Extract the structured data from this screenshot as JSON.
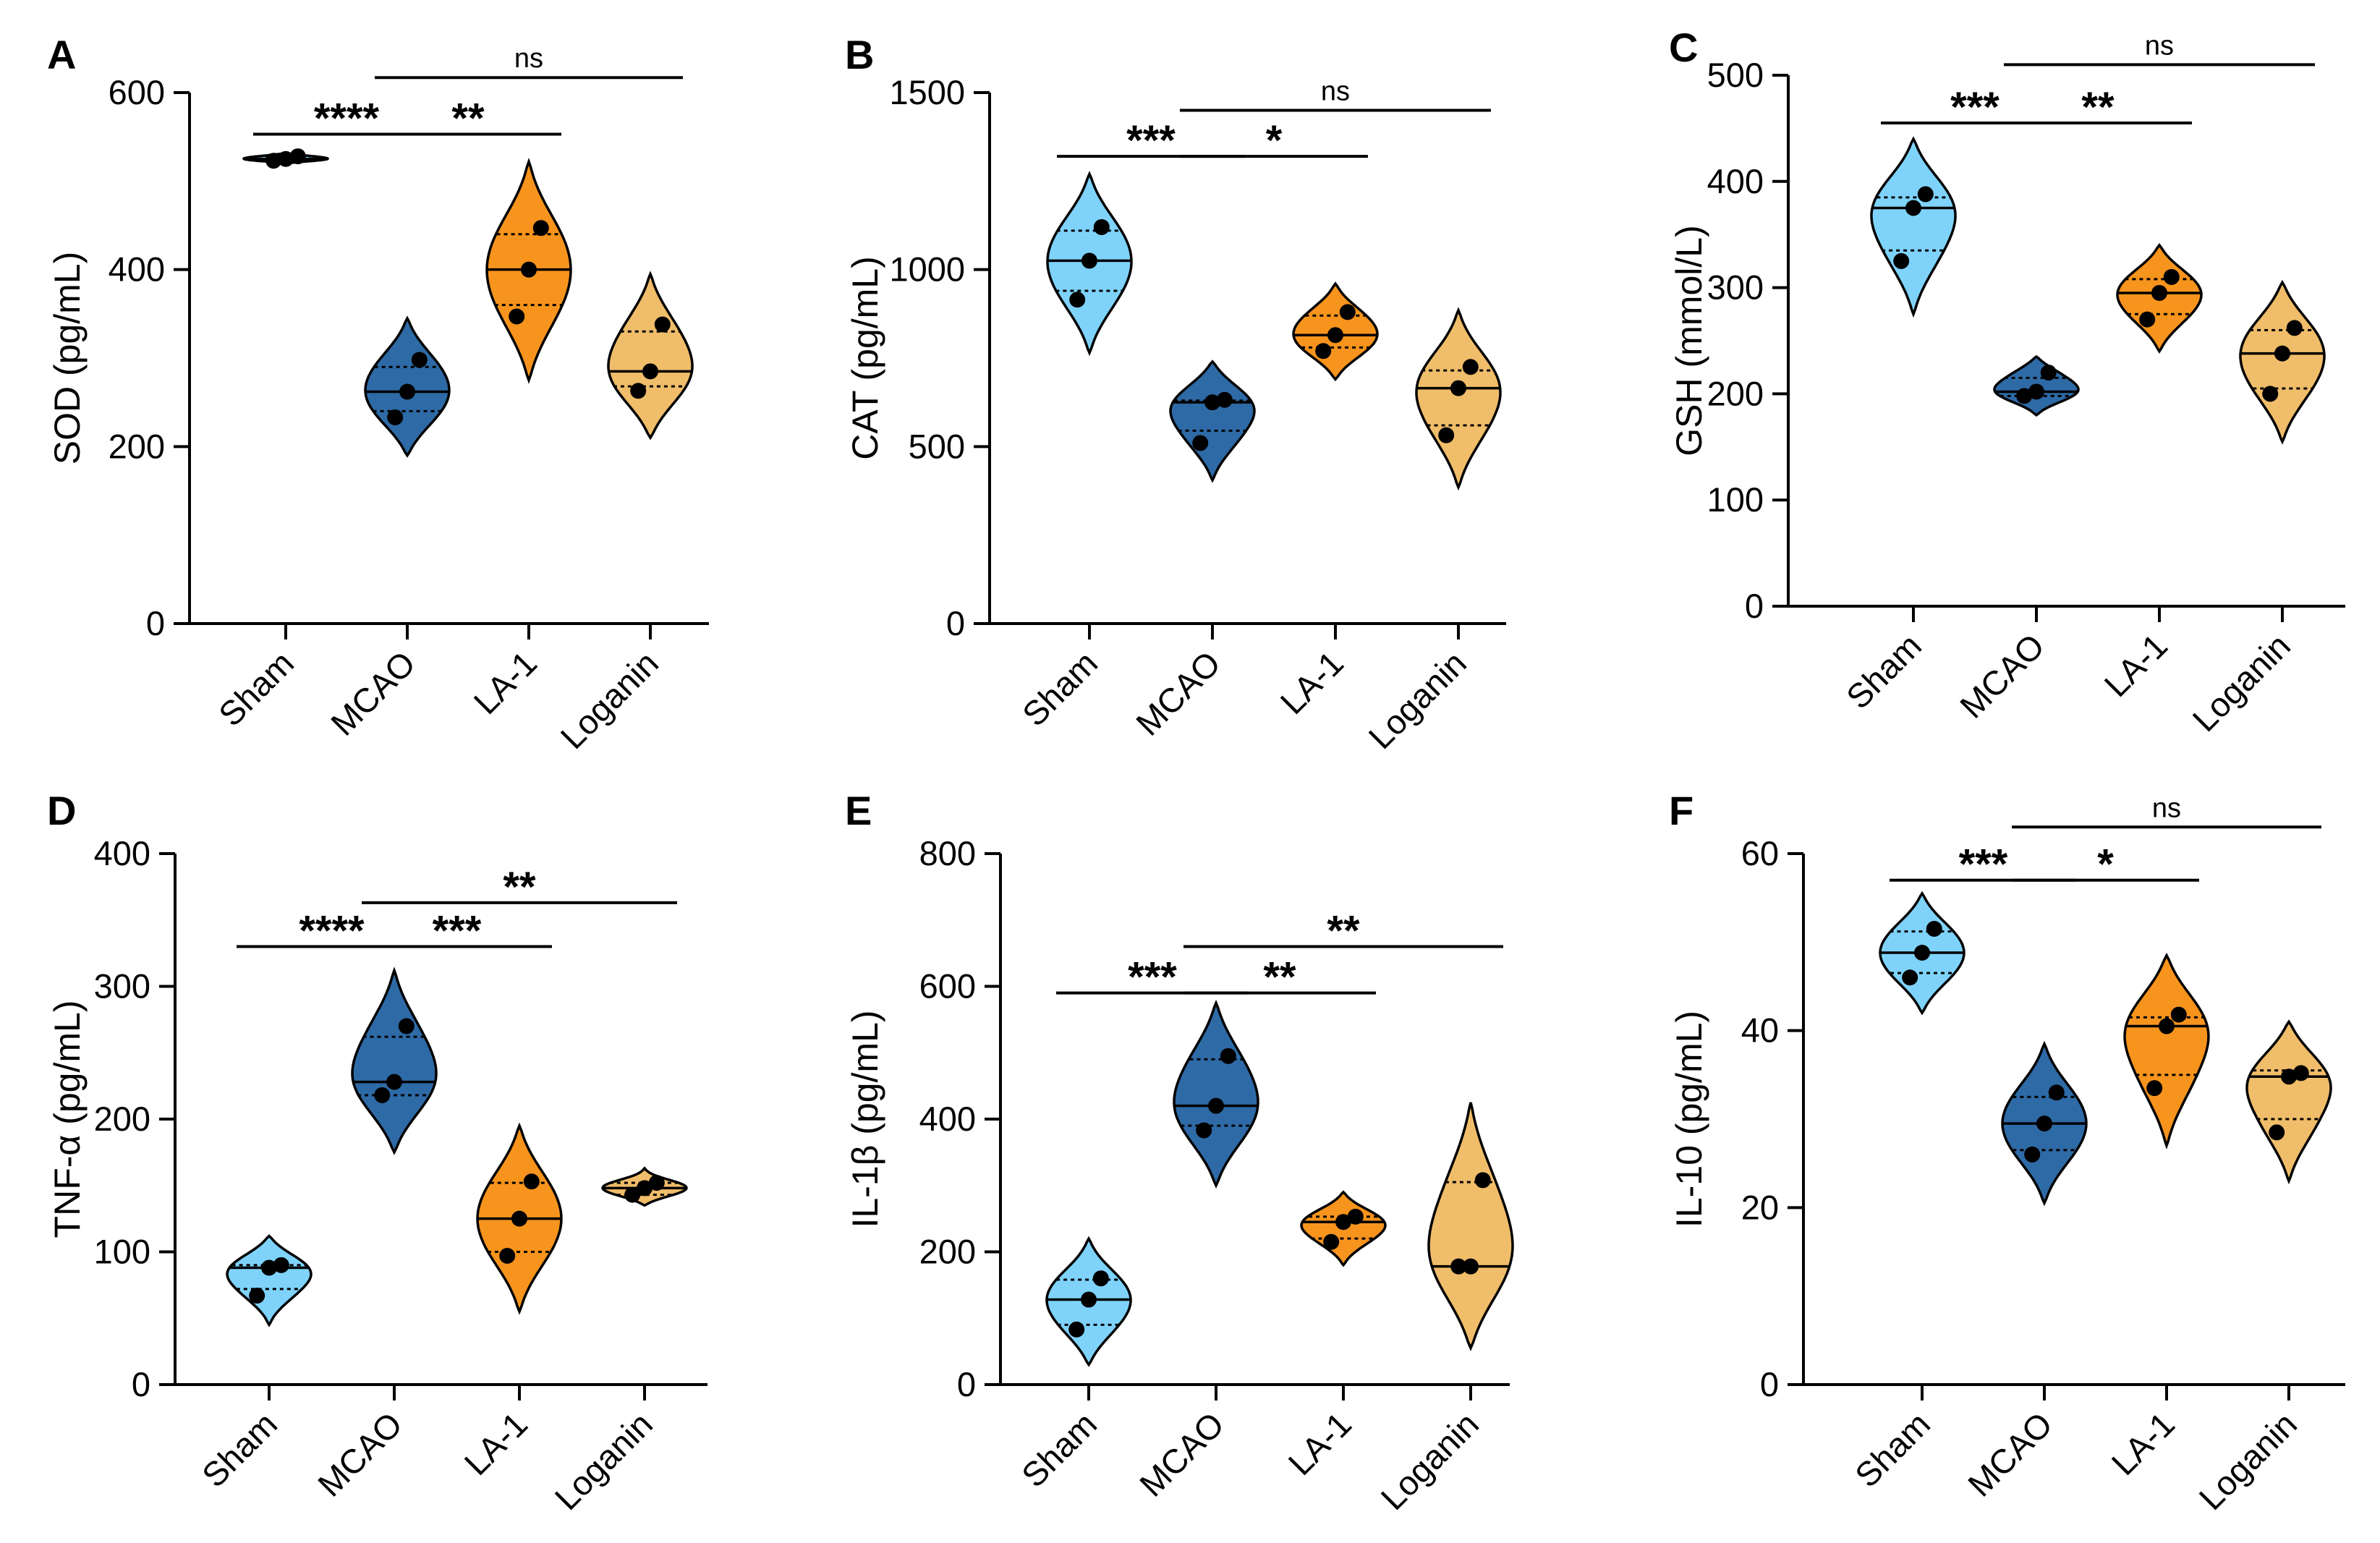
{
  "colors": {
    "Sham": "#7fd3fb",
    "MCAO": "#2e6aa6",
    "LA-1": "#f7941d",
    "Loganin": "#f0bd6a",
    "stroke": "#000000"
  },
  "chart_data": [
    {
      "panel": "A",
      "type": "violin",
      "ylabel": "SOD (pg/mL)",
      "ylim": [
        0,
        600
      ],
      "yticks": [
        0,
        200,
        400,
        600
      ],
      "categories": [
        "Sham",
        "MCAO",
        "LA-1",
        "Loganin"
      ],
      "series": [
        {
          "name": "Sham",
          "points": [
            523,
            525,
            528
          ],
          "median": 525,
          "q1": 523,
          "q3": 528,
          "range": [
            520,
            532
          ]
        },
        {
          "name": "MCAO",
          "points": [
            233,
            262,
            298
          ],
          "median": 262,
          "q1": 240,
          "q3": 290,
          "range": [
            190,
            345
          ]
        },
        {
          "name": "LA-1",
          "points": [
            347,
            400,
            447
          ],
          "median": 400,
          "q1": 360,
          "q3": 440,
          "range": [
            275,
            522
          ]
        },
        {
          "name": "Loganin",
          "points": [
            263,
            285,
            338
          ],
          "median": 285,
          "q1": 268,
          "q3": 330,
          "range": [
            210,
            395
          ]
        }
      ],
      "comparisons": [
        {
          "from": "Sham",
          "to": "MCAO",
          "label": "****",
          "y": 553
        },
        {
          "from": "MCAO",
          "to": "LA-1",
          "label": "**",
          "y": 553
        },
        {
          "from": "MCAO",
          "to": "Loganin",
          "label": "ns",
          "y": 617
        }
      ]
    },
    {
      "panel": "B",
      "type": "violin",
      "ylabel": "CAT (pg/mL)",
      "ylim": [
        0,
        1500
      ],
      "yticks": [
        0,
        500,
        1000,
        1500
      ],
      "categories": [
        "Sham",
        "MCAO",
        "LA-1",
        "Loganin"
      ],
      "series": [
        {
          "name": "Sham",
          "points": [
            915,
            1025,
            1120
          ],
          "median": 1025,
          "q1": 940,
          "q3": 1110,
          "range": [
            765,
            1270
          ]
        },
        {
          "name": "MCAO",
          "points": [
            510,
            625,
            632
          ],
          "median": 625,
          "q1": 545,
          "q3": 630,
          "range": [
            405,
            740
          ]
        },
        {
          "name": "LA-1",
          "points": [
            770,
            815,
            880
          ],
          "median": 815,
          "q1": 780,
          "q3": 870,
          "range": [
            690,
            960
          ]
        },
        {
          "name": "Loganin",
          "points": [
            532,
            665,
            725
          ],
          "median": 665,
          "q1": 560,
          "q3": 715,
          "range": [
            385,
            885
          ]
        }
      ],
      "comparisons": [
        {
          "from": "Sham",
          "to": "MCAO",
          "label": "***",
          "y": 1320
        },
        {
          "from": "MCAO",
          "to": "LA-1",
          "label": "*",
          "y": 1320
        },
        {
          "from": "MCAO",
          "to": "Loganin",
          "label": "ns",
          "y": 1450
        }
      ]
    },
    {
      "panel": "C",
      "type": "violin",
      "ylabel": "GSH (mmol/L)",
      "ylim": [
        0,
        500
      ],
      "yticks": [
        0,
        100,
        200,
        300,
        400,
        500
      ],
      "categories": [
        "Sham",
        "MCAO",
        "LA-1",
        "Loganin"
      ],
      "series": [
        {
          "name": "Sham",
          "points": [
            325,
            375,
            388
          ],
          "median": 375,
          "q1": 335,
          "q3": 385,
          "range": [
            275,
            440
          ]
        },
        {
          "name": "MCAO",
          "points": [
            198,
            202,
            220
          ],
          "median": 202,
          "q1": 198,
          "q3": 215,
          "range": [
            180,
            235
          ]
        },
        {
          "name": "LA-1",
          "points": [
            270,
            295,
            310
          ],
          "median": 295,
          "q1": 275,
          "q3": 308,
          "range": [
            240,
            340
          ]
        },
        {
          "name": "Loganin",
          "points": [
            200,
            238,
            262
          ],
          "median": 238,
          "q1": 205,
          "q3": 260,
          "range": [
            155,
            305
          ]
        }
      ],
      "comparisons": [
        {
          "from": "Sham",
          "to": "MCAO",
          "label": "***",
          "y": 455
        },
        {
          "from": "MCAO",
          "to": "LA-1",
          "label": "**",
          "y": 455
        },
        {
          "from": "MCAO",
          "to": "Loganin",
          "label": "ns",
          "y": 510
        }
      ]
    },
    {
      "panel": "D",
      "type": "violin",
      "ylabel": "TNF-α (pg/mL)",
      "ylim": [
        0,
        400
      ],
      "yticks": [
        0,
        100,
        200,
        300,
        400
      ],
      "categories": [
        "Sham",
        "MCAO",
        "LA-1",
        "Loganin"
      ],
      "series": [
        {
          "name": "Sham",
          "points": [
            67,
            88,
            90
          ],
          "median": 88,
          "q1": 72,
          "q3": 90,
          "range": [
            45,
            112
          ]
        },
        {
          "name": "MCAO",
          "points": [
            218,
            228,
            270
          ],
          "median": 228,
          "q1": 218,
          "q3": 262,
          "range": [
            175,
            312
          ]
        },
        {
          "name": "LA-1",
          "points": [
            97,
            125,
            153
          ],
          "median": 125,
          "q1": 100,
          "q3": 152,
          "range": [
            55,
            195
          ]
        },
        {
          "name": "Loganin",
          "points": [
            143,
            148,
            152
          ],
          "median": 148,
          "q1": 143,
          "q3": 152,
          "range": [
            135,
            163
          ]
        }
      ],
      "comparisons": [
        {
          "from": "Sham",
          "to": "MCAO",
          "label": "****",
          "y": 330
        },
        {
          "from": "MCAO",
          "to": "LA-1",
          "label": "***",
          "y": 330
        },
        {
          "from": "MCAO",
          "to": "Loganin",
          "label": "**",
          "y": 363
        }
      ]
    },
    {
      "panel": "E",
      "type": "violin",
      "ylabel": "IL-1β (pg/mL)",
      "ylim": [
        0,
        800
      ],
      "yticks": [
        0,
        200,
        400,
        600,
        800
      ],
      "categories": [
        "Sham",
        "MCAO",
        "LA-1",
        "Loganin"
      ],
      "series": [
        {
          "name": "Sham",
          "points": [
            83,
            128,
            160
          ],
          "median": 128,
          "q1": 90,
          "q3": 158,
          "range": [
            30,
            220
          ]
        },
        {
          "name": "MCAO",
          "points": [
            383,
            420,
            495
          ],
          "median": 420,
          "q1": 390,
          "q3": 490,
          "range": [
            300,
            575
          ]
        },
        {
          "name": "LA-1",
          "points": [
            215,
            245,
            253
          ],
          "median": 245,
          "q1": 220,
          "q3": 253,
          "range": [
            180,
            290
          ]
        },
        {
          "name": "Loganin",
          "points": [
            178,
            178,
            308
          ],
          "median": 178,
          "q1": 178,
          "q3": 305,
          "range": [
            55,
            425
          ]
        }
      ],
      "comparisons": [
        {
          "from": "Sham",
          "to": "MCAO",
          "label": "***",
          "y": 590
        },
        {
          "from": "MCAO",
          "to": "LA-1",
          "label": "**",
          "y": 590
        },
        {
          "from": "MCAO",
          "to": "Loganin",
          "label": "**",
          "y": 660
        }
      ]
    },
    {
      "panel": "F",
      "type": "violin",
      "ylabel": "IL-10  (pg/mL)",
      "ylim": [
        0,
        60
      ],
      "yticks": [
        0,
        20,
        40,
        60
      ],
      "categories": [
        "Sham",
        "MCAO",
        "LA-1",
        "Loganin"
      ],
      "series": [
        {
          "name": "Sham",
          "points": [
            46,
            48.8,
            51.5
          ],
          "median": 48.8,
          "q1": 46.5,
          "q3": 51.2,
          "range": [
            42,
            55.5
          ]
        },
        {
          "name": "MCAO",
          "points": [
            26,
            29.5,
            33
          ],
          "median": 29.5,
          "q1": 26.5,
          "q3": 32.5,
          "range": [
            20.5,
            38.5
          ]
        },
        {
          "name": "LA-1",
          "points": [
            33.5,
            40.5,
            41.8
          ],
          "median": 40.5,
          "q1": 35,
          "q3": 41.5,
          "range": [
            27,
            48.5
          ]
        },
        {
          "name": "Loganin",
          "points": [
            28.5,
            34.8,
            35.2
          ],
          "median": 34.8,
          "q1": 30,
          "q3": 35.5,
          "range": [
            23,
            41
          ]
        }
      ],
      "comparisons": [
        {
          "from": "Sham",
          "to": "MCAO",
          "label": "***",
          "y": 57
        },
        {
          "from": "MCAO",
          "to": "LA-1",
          "label": "*",
          "y": 57
        },
        {
          "from": "MCAO",
          "to": "Loganin",
          "label": "ns",
          "y": 63
        }
      ]
    }
  ]
}
